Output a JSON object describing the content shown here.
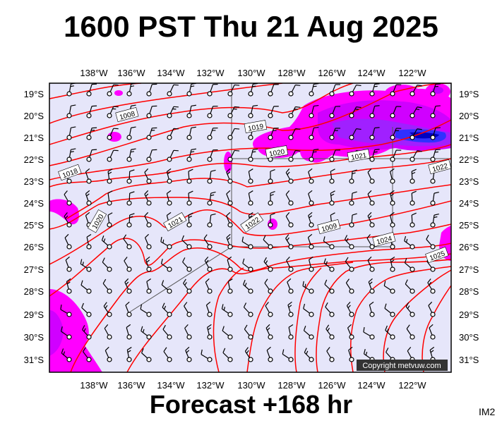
{
  "title": "1600 PST Thu 21 Aug 2025",
  "footer": "Forecast +168 hr",
  "corner_label": "IM2",
  "copyright": "Copyright metvuw.com",
  "axes": {
    "lon_labels": [
      "138°W",
      "136°W",
      "134°W",
      "132°W",
      "130°W",
      "128°W",
      "126°W",
      "124°W",
      "122°W"
    ],
    "lat_labels": [
      "19°S",
      "20°S",
      "21°S",
      "22°S",
      "23°S",
      "24°S",
      "25°S",
      "26°S",
      "27°S",
      "28°S",
      "29°S",
      "30°S",
      "31°S"
    ]
  },
  "isobar_labels": [
    {
      "text": "1008"
    },
    {
      "text": "1019"
    },
    {
      "text": "1020"
    },
    {
      "text": "1021"
    },
    {
      "text": "1022"
    },
    {
      "text": "1018"
    },
    {
      "text": "1020"
    },
    {
      "text": "1021"
    },
    {
      "text": "1022"
    },
    {
      "text": "1009"
    },
    {
      "text": "1024"
    },
    {
      "text": "1025"
    }
  ],
  "colors": {
    "sea": "#e6e6fa",
    "isobar": "#ff0000",
    "rain_light": "#ff00ff",
    "rain_mid": "#c000ff",
    "rain_heavy": "#2020ff",
    "grid": "#555555"
  }
}
